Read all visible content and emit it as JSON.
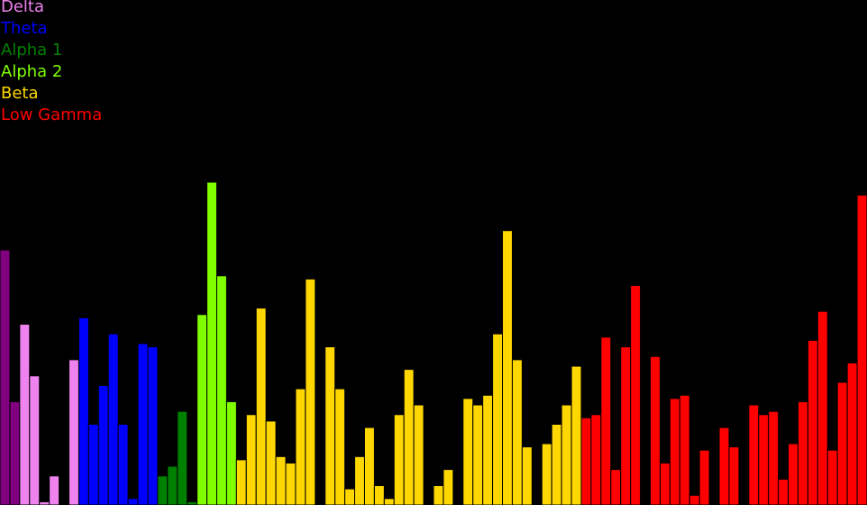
{
  "chart_data": {
    "type": "bar",
    "ylim": [
      0,
      100
    ],
    "grid": false,
    "legend_placement": "top-left",
    "bar_stroke": "#000000",
    "series": [
      {
        "name": "Delta",
        "color": "#ee82ee",
        "values": [
          79,
          32,
          56,
          40,
          1,
          9,
          0,
          45
        ]
      },
      {
        "name": "Theta",
        "color": "#0000ff",
        "values": [
          58,
          25,
          37,
          53,
          25,
          2,
          50,
          49
        ]
      },
      {
        "name": "Alpha 1",
        "color": "#008000",
        "values": [
          9,
          12,
          29,
          1
        ]
      },
      {
        "name": "Alpha 2",
        "color": "#7fff00",
        "values": [
          59,
          100,
          71,
          32
        ]
      },
      {
        "name": "Beta",
        "color": "#ffd700",
        "values": [
          14,
          28,
          61,
          26,
          15,
          13,
          36,
          70,
          0,
          49,
          36,
          5,
          15,
          24,
          6,
          2,
          28,
          42,
          31,
          0,
          6,
          11,
          0,
          33,
          31,
          34,
          53,
          85,
          45,
          18,
          0,
          19,
          25,
          31,
          43
        ]
      },
      {
        "name": "Low Gamma",
        "color": "#ff0000",
        "values": [
          27,
          28,
          52,
          11,
          49,
          68,
          0,
          46,
          13,
          33,
          34,
          3,
          17,
          0,
          24,
          18,
          0,
          31,
          28,
          29,
          8,
          19,
          32,
          51,
          60,
          17,
          38,
          44,
          96
        ]
      }
    ],
    "fill_colors": {
      "Delta": [
        "#800080",
        "#800080",
        "#ee82ee",
        "#ee82ee",
        "#ee82ee",
        "#ee82ee",
        "#ee82ee",
        "#ee82ee"
      ]
    }
  }
}
